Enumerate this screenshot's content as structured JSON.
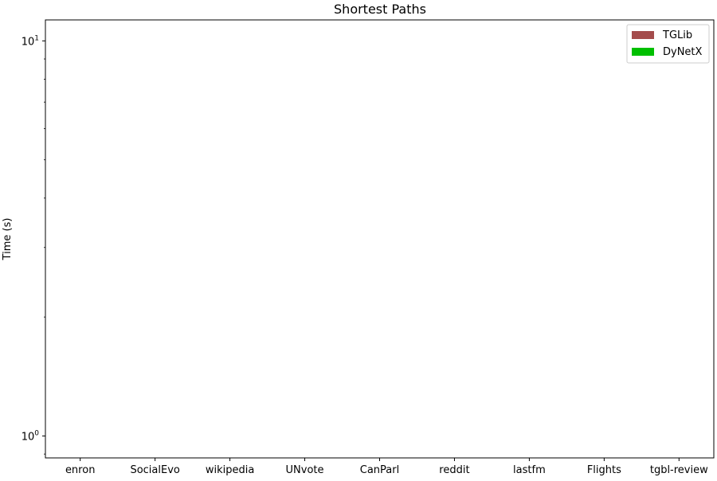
{
  "chart_data": {
    "type": "bar",
    "title": "Shortest Paths",
    "xlabel": "",
    "ylabel": "Time (s)",
    "yscale": "log",
    "ylim": [
      0.88,
      11.3
    ],
    "categories": [
      "enron",
      "SocialEvo",
      "wikipedia",
      "UNvote",
      "CanParl",
      "reddit",
      "lastfm",
      "Flights",
      "tgbl-review"
    ],
    "series": [
      {
        "name": "TGLib",
        "color": "#a44c4c",
        "values": [
          null,
          null,
          null,
          null,
          null,
          null,
          null,
          null,
          null
        ]
      },
      {
        "name": "DyNetX",
        "color": "#00bf00",
        "values": [
          null,
          null,
          null,
          null,
          null,
          null,
          null,
          null,
          null
        ]
      }
    ],
    "yticks": [
      {
        "value": 1,
        "base": "10",
        "exp": "0"
      },
      {
        "value": 10,
        "base": "10",
        "exp": "1"
      }
    ],
    "grid": false,
    "legend_position": "top-right"
  }
}
